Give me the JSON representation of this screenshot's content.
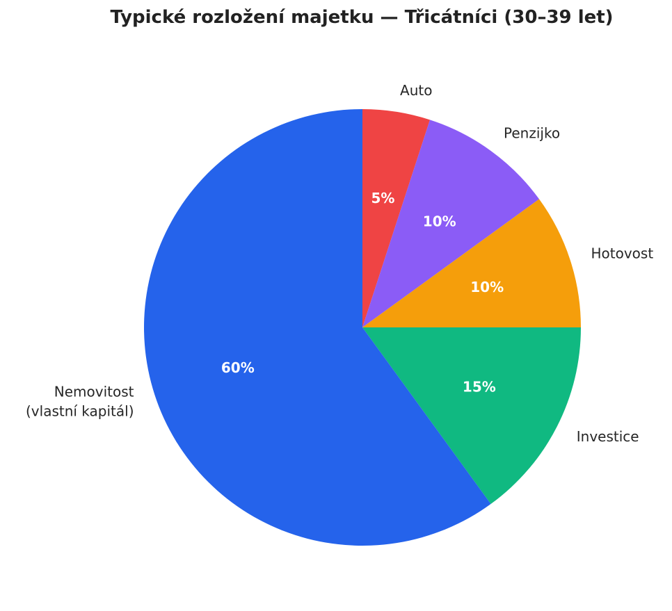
{
  "chart_data": {
    "type": "pie",
    "title": "Typické rozložení majetku — Třicátníci (30–39 let)",
    "start_angle_deg": 90,
    "direction": "clockwise",
    "slices": [
      {
        "label": [
          "Auto"
        ],
        "value": 5,
        "pct_label": "5%",
        "color": "#ef4444"
      },
      {
        "label": [
          "Penzijko"
        ],
        "value": 10,
        "pct_label": "10%",
        "color": "#8b5cf6"
      },
      {
        "label": [
          "Hotovost"
        ],
        "value": 10,
        "pct_label": "10%",
        "color": "#f59e0b"
      },
      {
        "label": [
          "Investice"
        ],
        "value": 15,
        "pct_label": "15%",
        "color": "#10b981"
      },
      {
        "label": [
          "Nemovitost",
          "(vlastní kapitál)"
        ],
        "value": 60,
        "pct_label": "60%",
        "color": "#2563eb"
      }
    ]
  }
}
